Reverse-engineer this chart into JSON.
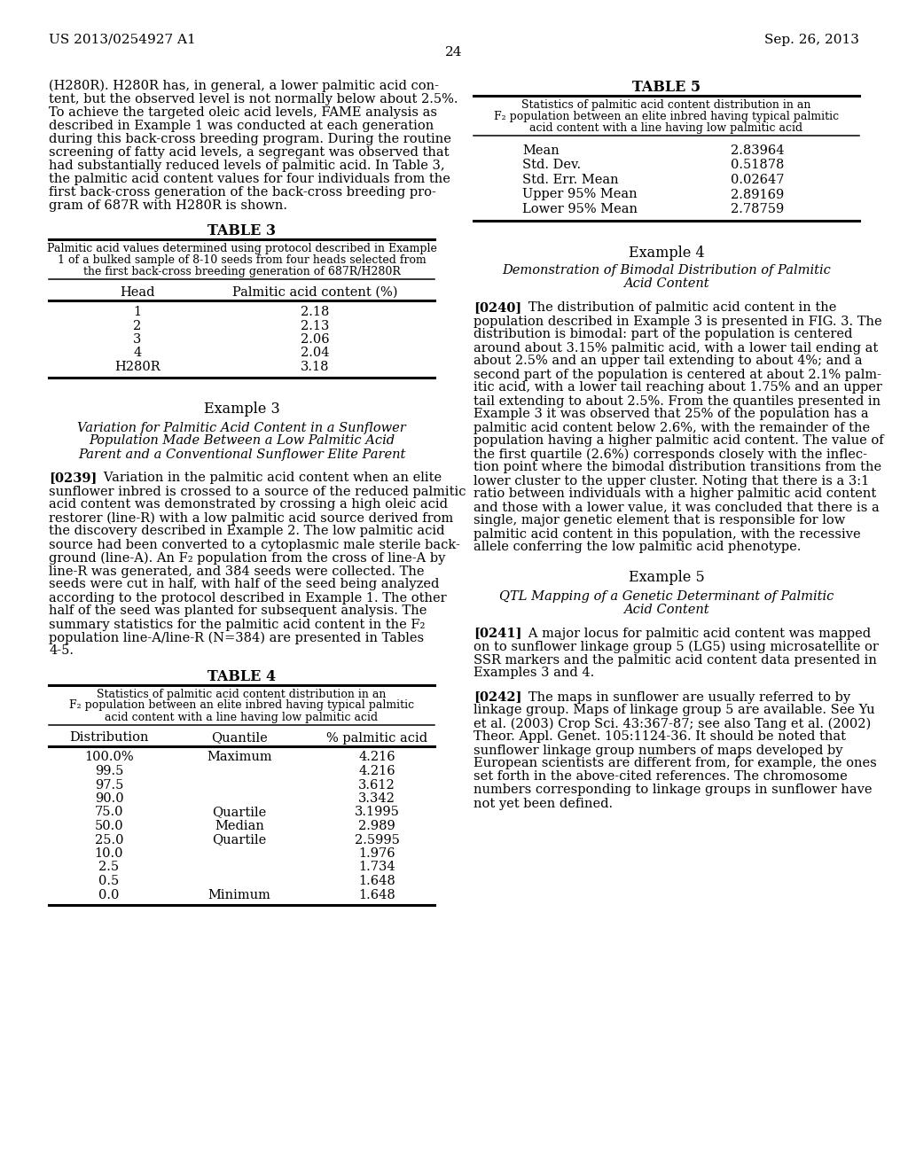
{
  "background_color": "#ffffff",
  "header_left": "US 2013/0254927 A1",
  "header_right": "Sep. 26, 2013",
  "page_number": "24",
  "left_column": {
    "intro_text": [
      "(H280R). H280R has, in general, a lower palmitic acid con-",
      "tent, but the observed level is not normally below about 2.5%.",
      "To achieve the targeted oleic acid levels, FAME analysis as",
      "described in Example 1 was conducted at each generation",
      "during this back-cross breeding program. During the routine",
      "screening of fatty acid levels, a segregant was observed that",
      "had substantially reduced levels of palmitic acid. In Table 3,",
      "the palmitic acid content values for four individuals from the",
      "first back-cross generation of the back-cross breeding pro-",
      "gram of 687R with H280R is shown."
    ],
    "table3_title": "TABLE 3",
    "table3_caption": [
      "Palmitic acid values determined using protocol described in Example",
      "1 of a bulked sample of 8-10 seeds from four heads selected from",
      "the first back-cross breeding generation of 687R/H280R"
    ],
    "table3_col1": "Head",
    "table3_col2": "Palmitic acid content (%)",
    "table3_rows": [
      [
        "1",
        "2.18"
      ],
      [
        "2",
        "2.13"
      ],
      [
        "3",
        "2.06"
      ],
      [
        "4",
        "2.04"
      ],
      [
        "H280R",
        "3.18"
      ]
    ],
    "example3_title": "Example 3",
    "example3_subtitle": [
      "Variation for Palmitic Acid Content in a Sunflower",
      "Population Made Between a Low Palmitic Acid",
      "Parent and a Conventional Sunflower Elite Parent"
    ],
    "para239_label": "[0239]",
    "para239_first": "   Variation in the palmitic acid content when an elite",
    "para239_text": [
      "sunflower inbred is crossed to a source of the reduced palmitic",
      "acid content was demonstrated by crossing a high oleic acid",
      "restorer (line-R) with a low palmitic acid source derived from",
      "the discovery described in Example 2. The low palmitic acid",
      "source had been converted to a cytoplasmic male sterile back-",
      "ground (line-A). An F₂ population from the cross of line-A by",
      "line-R was generated, and 384 seeds were collected. The",
      "seeds were cut in half, with half of the seed being analyzed",
      "according to the protocol described in Example 1. The other",
      "half of the seed was planted for subsequent analysis. The",
      "summary statistics for the palmitic acid content in the F₂",
      "population line-A/line-R (N=384) are presented in Tables",
      "4-5."
    ],
    "table4_title": "TABLE 4",
    "table4_caption": [
      "Statistics of palmitic acid content distribution in an",
      "F₂ population between an elite inbred having typical palmitic",
      "acid content with a line having low palmitic acid"
    ],
    "table4_col1": "Distribution",
    "table4_col2": "Quantile",
    "table4_col3": "% palmitic acid",
    "table4_rows": [
      [
        "100.0%",
        "Maximum",
        "4.216"
      ],
      [
        "99.5",
        "",
        "4.216"
      ],
      [
        "97.5",
        "",
        "3.612"
      ],
      [
        "90.0",
        "",
        "3.342"
      ],
      [
        "75.0",
        "Quartile",
        "3.1995"
      ],
      [
        "50.0",
        "Median",
        "2.989"
      ],
      [
        "25.0",
        "Quartile",
        "2.5995"
      ],
      [
        "10.0",
        "",
        "1.976"
      ],
      [
        "2.5",
        "",
        "1.734"
      ],
      [
        "0.5",
        "",
        "1.648"
      ],
      [
        "0.0",
        "Minimum",
        "1.648"
      ]
    ]
  },
  "right_column": {
    "table5_title": "TABLE 5",
    "table5_caption": [
      "Statistics of palmitic acid content distribution in an",
      "F₂ population between an elite inbred having typical palmitic",
      "acid content with a line having low palmitic acid"
    ],
    "table5_rows": [
      [
        "Mean",
        "2.83964"
      ],
      [
        "Std. Dev.",
        "0.51878"
      ],
      [
        "Std. Err. Mean",
        "0.02647"
      ],
      [
        "Upper 95% Mean",
        "2.89169"
      ],
      [
        "Lower 95% Mean",
        "2.78759"
      ]
    ],
    "example4_title": "Example 4",
    "example4_subtitle": [
      "Demonstration of Bimodal Distribution of Palmitic",
      "Acid Content"
    ],
    "para240_label": "[0240]",
    "para240_first": "   The distribution of palmitic acid content in the",
    "para240_text": [
      "population described in Example 3 is presented in FIG. 3. The",
      "distribution is bimodal: part of the population is centered",
      "around about 3.15% palmitic acid, with a lower tail ending at",
      "about 2.5% and an upper tail extending to about 4%; and a",
      "second part of the population is centered at about 2.1% palm-",
      "itic acid, with a lower tail reaching about 1.75% and an upper",
      "tail extending to about 2.5%. From the quantiles presented in",
      "Example 3 it was observed that 25% of the population has a",
      "palmitic acid content below 2.6%, with the remainder of the",
      "population having a higher palmitic acid content. The value of",
      "the first quartile (2.6%) corresponds closely with the inflec-",
      "tion point where the bimodal distribution transitions from the",
      "lower cluster to the upper cluster. Noting that there is a 3:1",
      "ratio between individuals with a higher palmitic acid content",
      "and those with a lower value, it was concluded that there is a",
      "single, major genetic element that is responsible for low",
      "palmitic acid content in this population, with the recessive",
      "allele conferring the low palmitic acid phenotype."
    ],
    "example5_title": "Example 5",
    "example5_subtitle": [
      "QTL Mapping of a Genetic Determinant of Palmitic",
      "Acid Content"
    ],
    "para241_label": "[0241]",
    "para241_first": "   A major locus for palmitic acid content was mapped",
    "para241_text": [
      "on to sunflower linkage group 5 (LG5) using microsatellite or",
      "SSR markers and the palmitic acid content data presented in",
      "Examples 3 and 4."
    ],
    "para242_label": "[0242]",
    "para242_first": "   The maps in sunflower are usually referred to by",
    "para242_text": [
      "linkage group. Maps of linkage group 5 are available. See Yu",
      "et al. (2003) Crop Sci. 43:367-87; see also Tang et al. (2002)",
      "Theor. Appl. Genet. 105:1124-36. It should be noted that",
      "sunflower linkage group numbers of maps developed by",
      "European scientists are different from, for example, the ones",
      "set forth in the above-cited references. The chromosome",
      "numbers corresponding to linkage groups in sunflower have",
      "not yet been defined."
    ]
  }
}
